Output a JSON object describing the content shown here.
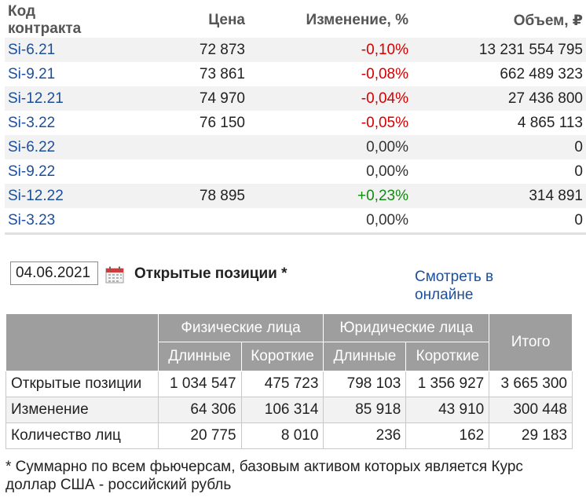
{
  "futures": {
    "headers": {
      "contract": "Код контракта",
      "price": "Цена",
      "change": "Изменение, %",
      "volume": "Объем, ₽"
    },
    "rows": [
      {
        "contract": "Si-6.21",
        "price": "72 873",
        "change": "-0,10%",
        "dir": "neg",
        "volume": "13 231 554 795"
      },
      {
        "contract": "Si-9.21",
        "price": "73 861",
        "change": "-0,08%",
        "dir": "neg",
        "volume": "662 489 323"
      },
      {
        "contract": "Si-12.21",
        "price": "74 970",
        "change": "-0,04%",
        "dir": "neg",
        "volume": "27 436 800"
      },
      {
        "contract": "Si-3.22",
        "price": "76 150",
        "change": "-0,05%",
        "dir": "neg",
        "volume": "4 865 113"
      },
      {
        "contract": "Si-6.22",
        "price": "",
        "change": "0,00%",
        "dir": "zero",
        "volume": "0"
      },
      {
        "contract": "Si-9.22",
        "price": "",
        "change": "0,00%",
        "dir": "zero",
        "volume": "0"
      },
      {
        "contract": "Si-12.22",
        "price": "78 895",
        "change": "+0,23%",
        "dir": "pos",
        "volume": "314 891"
      },
      {
        "contract": "Si-3.23",
        "price": "",
        "change": "0,00%",
        "dir": "zero",
        "volume": "0"
      }
    ]
  },
  "positions": {
    "date": "04.06.2021",
    "title": "Открытые позиции *",
    "online_link": "Смотреть в онлайне",
    "headers": {
      "individuals": "Физические лица",
      "legal": "Юридические лица",
      "total": "Итого",
      "long": "Длинные",
      "short": "Короткие"
    },
    "rows": [
      {
        "label": "Открытые позиции",
        "ind_long": "1 034 547",
        "ind_short": "475 723",
        "leg_long": "798 103",
        "leg_short": "1 356 927",
        "total": "3 665 300"
      },
      {
        "label": "Изменение",
        "ind_long": "64 306",
        "ind_short": "106 314",
        "leg_long": "85 918",
        "leg_short": "43 910",
        "total": "300 448"
      },
      {
        "label": "Количество лиц",
        "ind_long": "20 775",
        "ind_short": "8 010",
        "leg_long": "236",
        "leg_short": "162",
        "total": "29 183"
      }
    ],
    "footnote": "* Суммарно по всем фьючерсам, базовым активом которых является Курс доллар США - российский рубль"
  },
  "colors": {
    "link": "#1b4f9c",
    "negative": "#d40000",
    "positive": "#148a14",
    "header_bg": "#9e9e9e"
  },
  "icons": {
    "calendar": "calendar-icon"
  }
}
